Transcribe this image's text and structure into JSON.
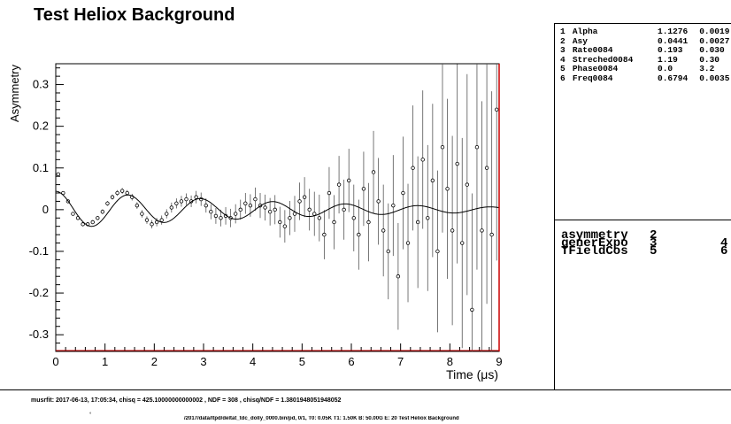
{
  "chart_data": {
    "type": "scatter",
    "title": "Test Heliox Background",
    "xlabel": "Time (μs)",
    "ylabel": "Asymmetry",
    "xlim": [
      0,
      9
    ],
    "ylim": [
      -0.34,
      0.35
    ],
    "x_ticks": [
      "0",
      "1",
      "2",
      "3",
      "4",
      "5",
      "6",
      "7",
      "8",
      "9"
    ],
    "y_ticks": [
      "-0.3",
      "-0.2",
      "-0.1",
      "0",
      "0.1",
      "0.2",
      "0.3"
    ],
    "y_tick_values": [
      -0.3,
      -0.2,
      -0.1,
      0,
      0.1,
      0.2,
      0.3
    ],
    "grid": false,
    "fit_params": {
      "alpha": 1.1276,
      "asy": 0.0441,
      "rate": 0.193,
      "streched": 1.19,
      "phase": 0.0,
      "freq": 0.6794
    },
    "series": [
      {
        "kind": "points",
        "x": [
          0.05,
          0.15,
          0.25,
          0.35,
          0.45,
          0.55,
          0.65,
          0.75,
          0.85,
          0.95,
          1.05,
          1.15,
          1.25,
          1.35,
          1.45,
          1.55,
          1.65,
          1.75,
          1.85,
          1.95,
          2.05,
          2.15,
          2.25,
          2.35,
          2.45,
          2.55,
          2.65,
          2.75,
          2.85,
          2.95,
          3.05,
          3.15,
          3.25,
          3.35,
          3.45,
          3.55,
          3.65,
          3.75,
          3.85,
          3.95,
          4.05,
          4.15,
          4.25,
          4.35,
          4.45,
          4.55,
          4.65,
          4.75,
          4.85,
          4.95,
          5.05,
          5.15,
          5.25,
          5.35,
          5.45,
          5.55,
          5.65,
          5.75,
          5.85,
          5.95,
          6.05,
          6.15,
          6.25,
          6.35,
          6.45,
          6.55,
          6.65,
          6.75,
          6.85,
          6.95,
          7.05,
          7.15,
          7.25,
          7.35,
          7.45,
          7.55,
          7.65,
          7.75,
          7.85,
          7.95,
          8.05,
          8.15,
          8.25,
          8.35,
          8.45,
          8.55,
          8.65,
          8.75,
          8.85,
          8.95
        ],
        "y": [
          0.085,
          0.04,
          0.02,
          -0.01,
          -0.02,
          -0.035,
          -0.035,
          -0.03,
          -0.02,
          -0.005,
          0.015,
          0.03,
          0.04,
          0.045,
          0.04,
          0.03,
          0.01,
          -0.01,
          -0.025,
          -0.035,
          -0.03,
          -0.025,
          -0.01,
          0.005,
          0.015,
          0.02,
          0.025,
          0.02,
          0.03,
          0.025,
          0.01,
          -0.005,
          -0.015,
          -0.02,
          -0.015,
          -0.02,
          -0.01,
          0.0,
          0.015,
          0.01,
          0.025,
          0.01,
          0.005,
          -0.005,
          0.0,
          -0.03,
          -0.04,
          -0.02,
          -0.01,
          0.02,
          0.03,
          0.0,
          -0.01,
          -0.02,
          -0.06,
          0.04,
          -0.03,
          0.06,
          0.0,
          0.07,
          -0.02,
          -0.06,
          0.05,
          -0.03,
          0.09,
          0.02,
          -0.05,
          -0.1,
          0.01,
          -0.16,
          0.04,
          -0.08,
          0.1,
          -0.03,
          0.12,
          -0.02,
          0.07,
          -0.1,
          0.15,
          0.05,
          -0.05,
          0.11,
          -0.08,
          0.06,
          -0.24,
          0.15,
          -0.05,
          0.1,
          -0.06,
          0.24
        ],
        "err": [
          0.004,
          0.004,
          0.004,
          0.004,
          0.004,
          0.005,
          0.005,
          0.005,
          0.005,
          0.006,
          0.006,
          0.006,
          0.007,
          0.007,
          0.007,
          0.008,
          0.008,
          0.009,
          0.009,
          0.01,
          0.01,
          0.011,
          0.011,
          0.012,
          0.012,
          0.013,
          0.014,
          0.014,
          0.015,
          0.016,
          0.017,
          0.018,
          0.019,
          0.02,
          0.021,
          0.022,
          0.023,
          0.024,
          0.025,
          0.027,
          0.028,
          0.03,
          0.031,
          0.033,
          0.035,
          0.037,
          0.039,
          0.041,
          0.043,
          0.045,
          0.048,
          0.05,
          0.053,
          0.056,
          0.059,
          0.062,
          0.065,
          0.069,
          0.072,
          0.076,
          0.08,
          0.084,
          0.089,
          0.094,
          0.099,
          0.104,
          0.11,
          0.115,
          0.121,
          0.128,
          0.135,
          0.142,
          0.15,
          0.158,
          0.166,
          0.175,
          0.184,
          0.194,
          0.205,
          0.216,
          0.227,
          0.239,
          0.252,
          0.265,
          0.279,
          0.294,
          0.31,
          0.326,
          0.344,
          0.362
        ]
      },
      {
        "kind": "fit-curve"
      }
    ]
  },
  "parameters": [
    {
      "index": "1",
      "name": "Alpha",
      "value": "1.1276",
      "error": "0.0019"
    },
    {
      "index": "2",
      "name": "Asy",
      "value": "0.0441",
      "error": "0.0027"
    },
    {
      "index": "3",
      "name": "Rate0084",
      "value": "0.193",
      "error": "0.030"
    },
    {
      "index": "4",
      "name": "Streched0084",
      "value": "1.19",
      "error": "0.30"
    },
    {
      "index": "5",
      "name": "Phase0084",
      "value": "0.0",
      "error": "3.2"
    },
    {
      "index": "6",
      "name": "Freq0084",
      "value": "0.6794",
      "error": "0.0035"
    }
  ],
  "theory": [
    {
      "name": "asymmetry",
      "a": "2",
      "b": ""
    },
    {
      "name": "generExpo",
      "a": "3",
      "b": "4"
    },
    {
      "name": "TFieldCos",
      "a": "5",
      "b": "6"
    }
  ],
  "footer": "musrfit: 2017-06-13, 17:05:34, chisq = 425.10000000000002 , NDF = 308 , chisq/NDF = 1.3801948051948052",
  "partial_line": "/2017/data/ltpd/deltat_tdc_dolly_0000.bin/pd, 0/1, T0: 0.05K T1: 1.50K B: 50.00G E: 20 Test Heliox Background",
  "partial_glyph": "°"
}
